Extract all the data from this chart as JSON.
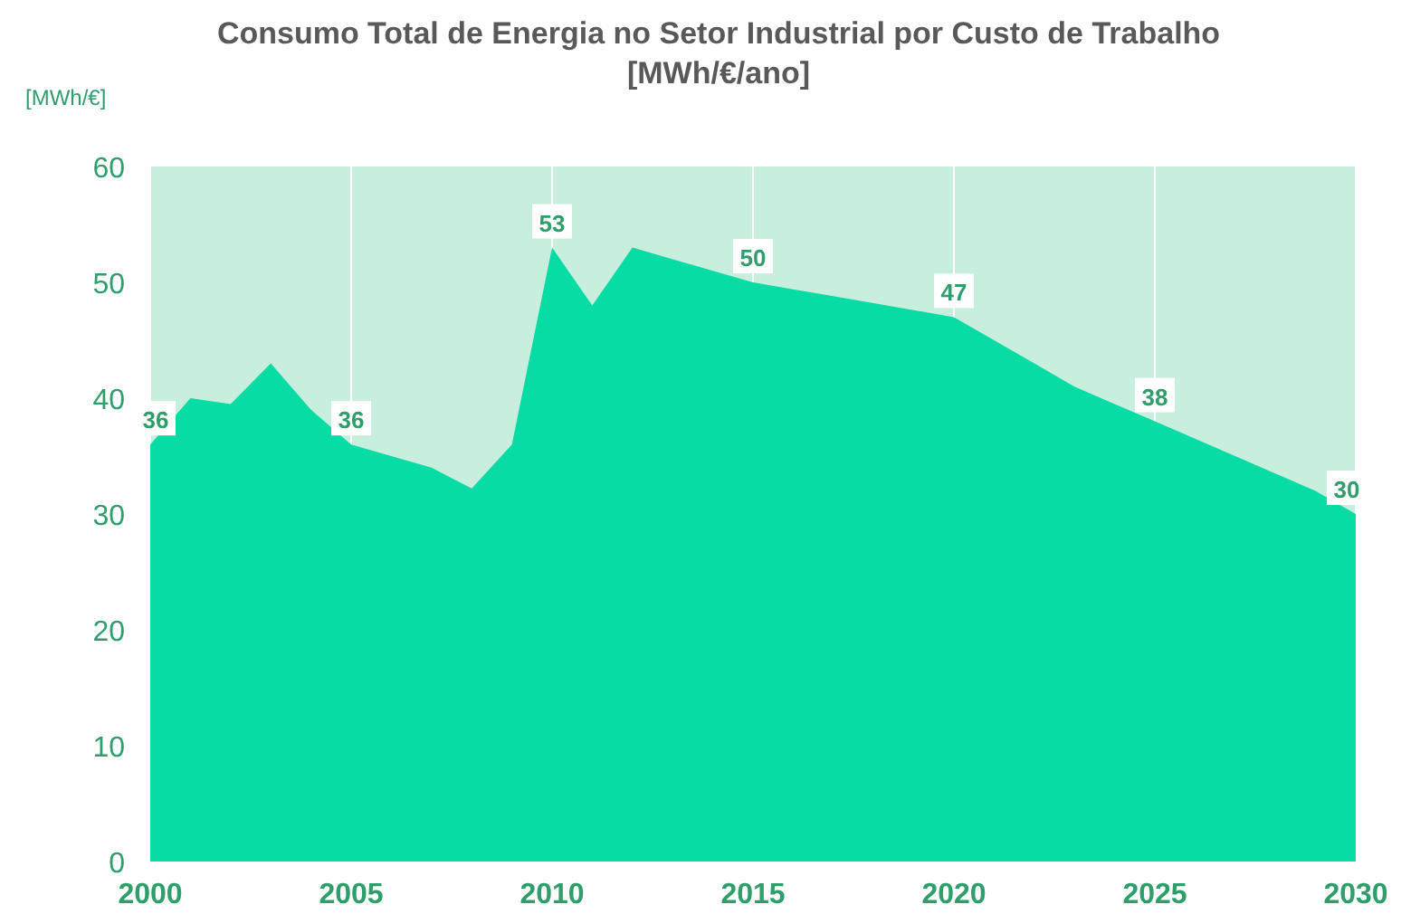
{
  "chart_data": {
    "type": "area",
    "title": "Consumo Total de Energia no Setor Industrial por Custo de Trabalho\n[MWh/€/ano]",
    "ylabel": "[MWh/€]",
    "x": [
      2000,
      2001,
      2002,
      2003,
      2004,
      2005,
      2006,
      2007,
      2008,
      2009,
      2010,
      2011,
      2012,
      2013,
      2014,
      2015,
      2016,
      2017,
      2018,
      2019,
      2020,
      2021,
      2022,
      2023,
      2024,
      2025,
      2026,
      2027,
      2028,
      2029,
      2030
    ],
    "series": [
      {
        "color": "#06dca3",
        "values": [
          36,
          40,
          39.5,
          43,
          39,
          36,
          35,
          34,
          32.2,
          36,
          53,
          48,
          53,
          52,
          51,
          50,
          49.4,
          48.8,
          48.2,
          47.6,
          47,
          45,
          43,
          41,
          39.5,
          38,
          36.5,
          35,
          33.5,
          32,
          30
        ],
        "value_labels": [
          "36",
          null,
          null,
          null,
          null,
          "36",
          null,
          null,
          null,
          null,
          "53",
          null,
          null,
          null,
          null,
          "50",
          null,
          null,
          null,
          null,
          "47",
          null,
          null,
          null,
          null,
          "38",
          null,
          null,
          null,
          null,
          "30"
        ]
      }
    ],
    "xlim": [
      2000,
      2030
    ],
    "xticks": [
      2000,
      2005,
      2010,
      2015,
      2020,
      2025,
      2030
    ],
    "ylim": [
      0,
      60
    ],
    "yticks": [
      0,
      10,
      20,
      30,
      40,
      50,
      60
    ],
    "grid": "x",
    "bands": [
      {
        "axis": "x",
        "from": 2000,
        "to": 2030,
        "color": "#c8eedd"
      }
    ]
  }
}
